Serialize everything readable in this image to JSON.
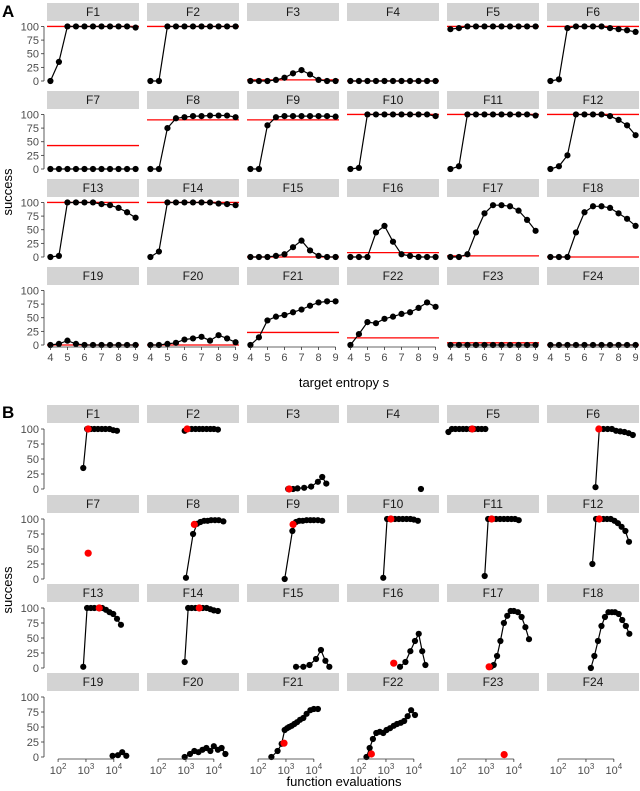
{
  "figure": {
    "panelA": {
      "letter": "A",
      "ylabel": "success",
      "xlabel": "target entropy s",
      "y_ticks": [
        0,
        25,
        50,
        75,
        100
      ],
      "x_ticks": [
        4,
        5,
        6,
        7,
        8,
        9
      ]
    },
    "panelB": {
      "letter": "B",
      "ylabel": "success",
      "xlabel": "function evaluations",
      "y_ticks": [
        0,
        25,
        50,
        75,
        100
      ],
      "x_ticks": [
        "10^2",
        "10^3",
        "10^4"
      ]
    }
  },
  "colors": {
    "strip": "#d3d3d3",
    "points": "#000000",
    "reference": "#ff0000"
  },
  "chart_data": [
    {
      "type": "line",
      "panel": "A",
      "facet_layout": "4 rows x 6 columns",
      "xlabel": "target entropy s",
      "ylabel": "success",
      "xlim": [
        3.8,
        9.2
      ],
      "ylim": [
        0,
        110
      ],
      "x": [
        4,
        4.5,
        5,
        5.5,
        6,
        6.5,
        7,
        7.5,
        8,
        8.5,
        9
      ],
      "series": [
        {
          "name": "F1",
          "values": [
            0,
            35,
            100,
            100,
            100,
            100,
            100,
            100,
            100,
            100,
            98
          ],
          "reference": 100
        },
        {
          "name": "F2",
          "values": [
            0,
            0,
            100,
            100,
            100,
            100,
            100,
            100,
            100,
            100,
            100
          ],
          "reference": 100
        },
        {
          "name": "F3",
          "values": [
            0,
            0,
            0,
            2,
            6,
            14,
            20,
            12,
            2,
            0,
            0
          ],
          "reference": 2
        },
        {
          "name": "F4",
          "values": [
            0,
            0,
            0,
            0,
            0,
            0,
            0,
            0,
            0,
            0,
            0
          ],
          "reference": 0
        },
        {
          "name": "F5",
          "values": [
            95,
            97,
            100,
            100,
            100,
            100,
            100,
            100,
            100,
            100,
            100
          ],
          "reference": 100
        },
        {
          "name": "F6",
          "values": [
            0,
            3,
            97,
            100,
            100,
            100,
            100,
            97,
            95,
            93,
            90
          ],
          "reference": 100
        },
        {
          "name": "F7",
          "values": [
            0,
            0,
            0,
            0,
            0,
            0,
            0,
            0,
            0,
            0,
            0
          ],
          "reference": 43
        },
        {
          "name": "F8",
          "values": [
            0,
            0,
            75,
            93,
            95,
            97,
            97,
            98,
            98,
            98,
            95
          ],
          "reference": 90
        },
        {
          "name": "F9",
          "values": [
            0,
            0,
            80,
            95,
            97,
            97,
            97,
            97,
            97,
            97,
            96
          ],
          "reference": 90
        },
        {
          "name": "F10",
          "values": [
            0,
            2,
            100,
            100,
            100,
            100,
            100,
            100,
            100,
            100,
            97
          ],
          "reference": 100
        },
        {
          "name": "F11",
          "values": [
            0,
            5,
            100,
            100,
            100,
            100,
            100,
            100,
            100,
            100,
            98
          ],
          "reference": 100
        },
        {
          "name": "F12",
          "values": [
            0,
            5,
            25,
            100,
            100,
            100,
            100,
            97,
            90,
            80,
            62
          ],
          "reference": 100
        },
        {
          "name": "F13",
          "values": [
            0,
            2,
            100,
            100,
            100,
            100,
            97,
            95,
            90,
            82,
            72
          ],
          "reference": 100
        },
        {
          "name": "F14",
          "values": [
            0,
            10,
            100,
            100,
            100,
            100,
            100,
            100,
            98,
            97,
            95
          ],
          "reference": 100
        },
        {
          "name": "F15",
          "values": [
            0,
            0,
            0,
            2,
            5,
            18,
            30,
            12,
            2,
            0,
            0
          ],
          "reference": 0
        },
        {
          "name": "F16",
          "values": [
            0,
            0,
            0,
            45,
            57,
            28,
            5,
            2,
            0,
            0,
            0
          ],
          "reference": 8
        },
        {
          "name": "F17",
          "values": [
            0,
            0,
            5,
            45,
            80,
            95,
            95,
            93,
            85,
            68,
            48
          ],
          "reference": 2
        },
        {
          "name": "F18",
          "values": [
            0,
            0,
            0,
            45,
            82,
            93,
            93,
            90,
            80,
            70,
            57
          ],
          "reference": 0
        },
        {
          "name": "F19",
          "values": [
            0,
            2,
            8,
            2,
            0,
            0,
            0,
            0,
            0,
            0,
            0
          ],
          "reference": 0
        },
        {
          "name": "F20",
          "values": [
            0,
            0,
            2,
            4,
            10,
            12,
            15,
            8,
            18,
            12,
            5
          ],
          "reference": 0
        },
        {
          "name": "F21",
          "values": [
            0,
            14,
            45,
            52,
            55,
            60,
            65,
            72,
            78,
            80,
            80
          ],
          "reference": 23
        },
        {
          "name": "F22",
          "values": [
            0,
            20,
            42,
            40,
            48,
            52,
            57,
            60,
            68,
            78,
            70
          ],
          "reference": 13
        },
        {
          "name": "F23",
          "values": [
            0,
            0,
            0,
            0,
            0,
            0,
            0,
            0,
            0,
            0,
            0
          ],
          "reference": 4
        },
        {
          "name": "F24",
          "values": [
            0,
            0,
            0,
            0,
            0,
            0,
            0,
            0,
            0,
            0,
            0
          ],
          "reference": 0
        }
      ]
    },
    {
      "type": "scatter",
      "panel": "B",
      "facet_layout": "4 rows x 6 columns",
      "xlabel": "function evaluations",
      "ylabel": "success",
      "x_scale": "log10",
      "xlim": [
        40,
        80000
      ],
      "ylim": [
        0,
        110
      ],
      "series": [
        {
          "name": "F1",
          "x": [
            800,
            1100,
            1500,
            2000,
            2700,
            3700,
            5000,
            7000,
            9500,
            13000
          ],
          "y": [
            35,
            100,
            100,
            100,
            100,
            100,
            100,
            100,
            98,
            97
          ],
          "reference": {
            "x": 1200,
            "y": 100
          }
        },
        {
          "name": "F2",
          "x": [
            900,
            1200,
            1600,
            2200,
            3000,
            4000,
            5500,
            7500,
            10000,
            14000
          ],
          "y": [
            97,
            100,
            100,
            100,
            100,
            100,
            100,
            100,
            100,
            99
          ],
          "reference": {
            "x": 1100,
            "y": 100
          }
        },
        {
          "name": "F3",
          "x": [
            1200,
            1800,
            2600,
            4500,
            8000,
            14000,
            20000,
            28000
          ],
          "y": [
            0,
            0,
            1,
            2,
            4,
            12,
            20,
            9
          ],
          "reference": {
            "x": 1300,
            "y": 0
          }
        },
        {
          "name": "F4",
          "x": [
            18000
          ],
          "y": [
            0
          ],
          "reference": null
        },
        {
          "name": "F5",
          "x": [
            45,
            60,
            80,
            110,
            150,
            200,
            280,
            380,
            520,
            700,
            950
          ],
          "y": [
            95,
            100,
            100,
            100,
            100,
            100,
            100,
            100,
            100,
            100,
            100
          ],
          "reference": {
            "x": 320,
            "y": 100
          }
        },
        {
          "name": "F6",
          "x": [
            2200,
            3000,
            4200,
            6000,
            8500,
            12000,
            17000,
            24000,
            34000,
            48000
          ],
          "y": [
            3,
            100,
            100,
            100,
            100,
            97,
            96,
            95,
            93,
            90
          ],
          "reference": {
            "x": 2900,
            "y": 100
          }
        },
        {
          "name": "F7",
          "x": [],
          "y": [],
          "reference": {
            "x": 1200,
            "y": 43
          }
        },
        {
          "name": "F8",
          "x": [
            1000,
            1800,
            2500,
            3300,
            4500,
            6000,
            8000,
            11000,
            15000,
            22000
          ],
          "y": [
            2,
            75,
            92,
            95,
            97,
            97,
            98,
            98,
            98,
            96
          ],
          "reference": {
            "x": 2000,
            "y": 91
          }
        },
        {
          "name": "F9",
          "x": [
            900,
            1700,
            2300,
            3000,
            4000,
            5500,
            7500,
            10000,
            14000,
            20000
          ],
          "y": [
            0,
            80,
            95,
            97,
            97,
            98,
            98,
            98,
            98,
            97
          ],
          "reference": {
            "x": 1800,
            "y": 91
          }
        },
        {
          "name": "F10",
          "x": [
            800,
            1100,
            1500,
            2100,
            2900,
            4000,
            5500,
            7500,
            10000,
            14000
          ],
          "y": [
            2,
            100,
            100,
            100,
            100,
            100,
            100,
            100,
            99,
            97
          ],
          "reference": {
            "x": 1500,
            "y": 100
          }
        },
        {
          "name": "F11",
          "x": [
            900,
            1200,
            1700,
            2300,
            3200,
            4400,
            6000,
            8200,
            11000,
            15000
          ],
          "y": [
            5,
            100,
            100,
            100,
            100,
            100,
            100,
            100,
            100,
            98
          ],
          "reference": {
            "x": 1600,
            "y": 100
          }
        },
        {
          "name": "F12",
          "x": [
            1700,
            2300,
            3100,
            4200,
            5700,
            7700,
            10500,
            14000,
            19000,
            26000,
            35000
          ],
          "y": [
            25,
            100,
            100,
            100,
            100,
            100,
            97,
            93,
            87,
            80,
            62
          ],
          "reference": {
            "x": 3000,
            "y": 100
          }
        },
        {
          "name": "F13",
          "x": [
            800,
            1100,
            1500,
            2000,
            2800,
            3800,
            5200,
            7000,
            9500,
            13000,
            18000
          ],
          "y": [
            2,
            100,
            100,
            100,
            100,
            100,
            97,
            93,
            90,
            82,
            72
          ],
          "reference": {
            "x": 3000,
            "y": 100
          }
        },
        {
          "name": "F14",
          "x": [
            900,
            1200,
            1600,
            2200,
            3000,
            4000,
            5500,
            7500,
            10000,
            14000
          ],
          "y": [
            10,
            100,
            100,
            100,
            100,
            100,
            100,
            98,
            96,
            95
          ],
          "reference": {
            "x": 3000,
            "y": 100
          }
        },
        {
          "name": "F15",
          "x": [
            2300,
            4200,
            7000,
            12000,
            18000,
            26000,
            36000
          ],
          "y": [
            2,
            2,
            5,
            15,
            30,
            12,
            2
          ],
          "reference": null
        },
        {
          "name": "F16",
          "x": [
            3200,
            5000,
            7500,
            11000,
            15000,
            20000,
            26000
          ],
          "y": [
            2,
            10,
            28,
            45,
            57,
            28,
            5
          ],
          "reference": {
            "x": 1900,
            "y": 8
          }
        },
        {
          "name": "F17",
          "x": [
            1500,
            1900,
            2500,
            3300,
            4400,
            5800,
            7700,
            10000,
            14000,
            19000,
            26000,
            35000
          ],
          "y": [
            2,
            5,
            20,
            45,
            75,
            87,
            95,
            95,
            93,
            85,
            68,
            48
          ],
          "reference": {
            "x": 1300,
            "y": 2
          }
        },
        {
          "name": "F18",
          "x": [
            1500,
            2000,
            2700,
            3600,
            4800,
            6400,
            8500,
            11000,
            15000,
            20000,
            27000,
            36000
          ],
          "y": [
            0,
            20,
            45,
            70,
            85,
            93,
            93,
            93,
            90,
            80,
            70,
            57
          ],
          "reference": null
        },
        {
          "name": "F19",
          "x": [
            9000,
            14000,
            20000,
            28000
          ],
          "y": [
            2,
            3,
            8,
            2
          ],
          "reference": null
        },
        {
          "name": "F20",
          "x": [
            900,
            1400,
            2000,
            2800,
            3900,
            5400,
            7500,
            10000,
            14000,
            19000,
            26000
          ],
          "y": [
            0,
            5,
            10,
            8,
            12,
            15,
            10,
            18,
            12,
            15,
            5
          ],
          "reference": null
        },
        {
          "name": "F21",
          "x": [
            300,
            500,
            700,
            900,
            1100,
            1300,
            1600,
            2000,
            2500,
            3200,
            4200,
            5500,
            7500,
            10000,
            14000
          ],
          "y": [
            0,
            10,
            22,
            45,
            48,
            50,
            52,
            55,
            58,
            62,
            65,
            72,
            78,
            80,
            80
          ],
          "reference": {
            "x": 850,
            "y": 23
          }
        },
        {
          "name": "F22",
          "x": [
            200,
            260,
            340,
            450,
            600,
            800,
            1050,
            1400,
            1900,
            2500,
            3400,
            4500,
            6000,
            8000,
            11000
          ],
          "y": [
            0,
            15,
            30,
            40,
            42,
            40,
            45,
            48,
            52,
            55,
            57,
            60,
            68,
            78,
            70
          ],
          "reference": {
            "x": 300,
            "y": 5
          }
        },
        {
          "name": "F23",
          "x": [],
          "y": [],
          "reference": {
            "x": 4500,
            "y": 4
          }
        },
        {
          "name": "F24",
          "x": [],
          "y": [],
          "reference": null
        }
      ]
    }
  ]
}
